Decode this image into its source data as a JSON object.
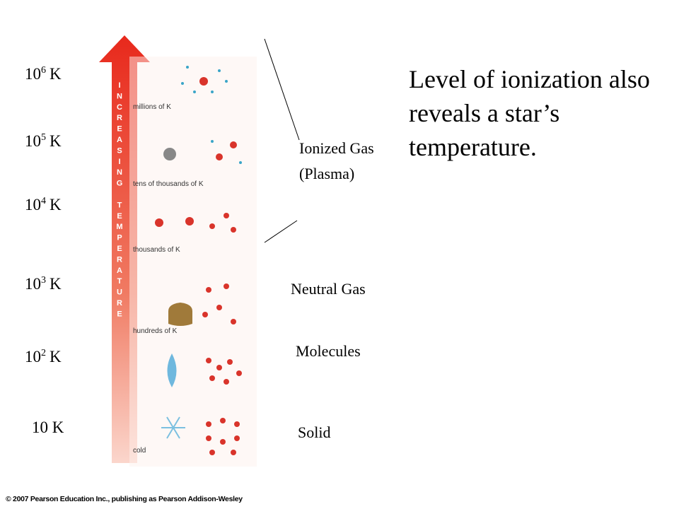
{
  "temperatures": [
    {
      "base": "10",
      "exp": "6",
      "unit": "K"
    },
    {
      "base": "10",
      "exp": "5",
      "unit": "K"
    },
    {
      "base": "10",
      "exp": "4",
      "unit": "K"
    },
    {
      "base": "10",
      "exp": "3",
      "unit": "K"
    },
    {
      "base": "10",
      "exp": "2",
      "unit": "K"
    },
    {
      "base": "10",
      "unit": "K"
    }
  ],
  "arrow_label": "INCREASING TEMPERATURE",
  "panel_labels": [
    "millions of K",
    "tens of thousands of K",
    "thousands of K",
    "hundreds of K",
    "cold"
  ],
  "states": [
    "Ionized Gas (Plasma)",
    "Neutral Gas",
    "Molecules",
    "Solid"
  ],
  "heading": "Level of ionization also reveals a star’s temperature.",
  "footer": "© 2007 Pearson Education Inc., publishing as Pearson Addison-Wesley"
}
